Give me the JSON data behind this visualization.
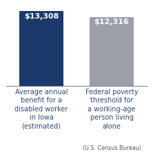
{
  "categories": [
    "Average annual\nbenefit for a\na disabled worker\nin Iowa\n(estimated)",
    "Federal poverty\nthreshold for\na working-age\nperson living\nalone"
  ],
  "sub_label": "(U.S. Census Bureau)",
  "values": [
    13308,
    12316
  ],
  "labels": [
    "$13,308",
    "$12,316"
  ],
  "bar_colors": [
    "#1b3a6b",
    "#9a9fa8"
  ],
  "background_color": "#ffffff",
  "ylim": [
    0,
    14500
  ],
  "label_fontsize": 8.0,
  "tick_fontsize": 7.0,
  "sub_label_fontsize": 5.8,
  "bar_width": 0.62,
  "label_color": "#ffffff",
  "tick_color": "#2d4a7a",
  "bottom_spine_color": "#888888"
}
